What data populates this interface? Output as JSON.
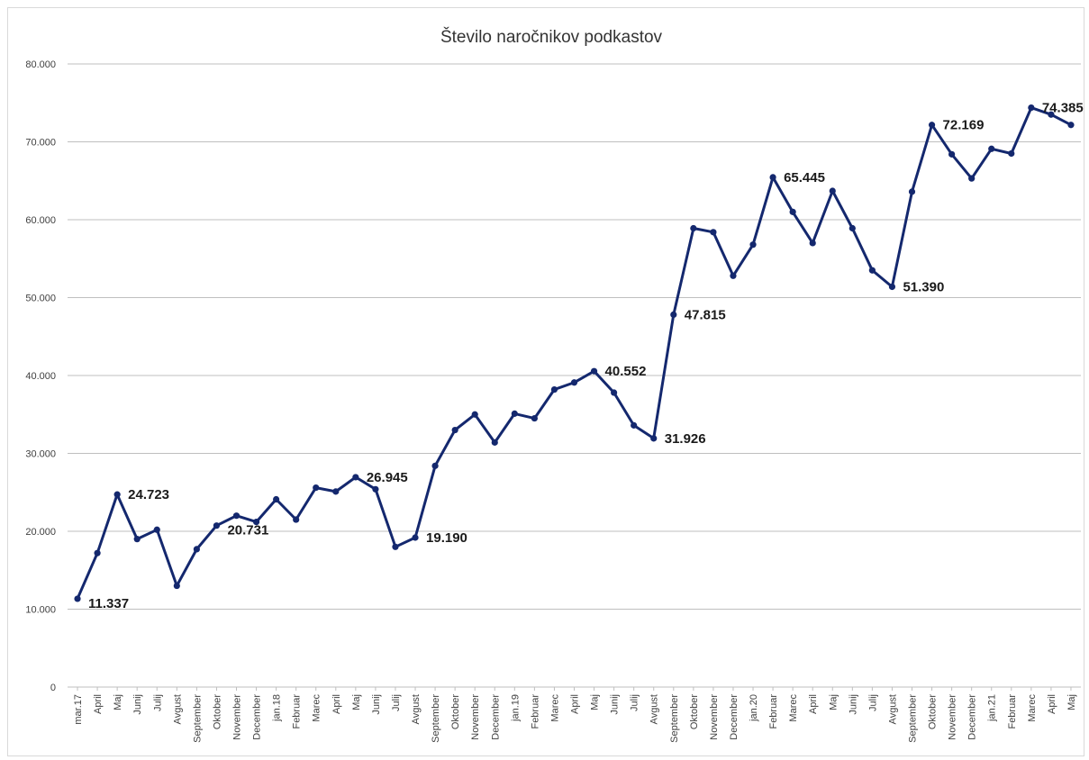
{
  "chart_data": {
    "type": "line",
    "title": "Število naročnikov podkastov",
    "xlabel": "",
    "ylabel": "",
    "ylim": [
      0,
      80000
    ],
    "yticks": [
      0,
      10000,
      20000,
      30000,
      40000,
      50000,
      60000,
      70000,
      80000
    ],
    "ytick_labels": [
      "0",
      "10.000",
      "20.000",
      "30.000",
      "40.000",
      "50.000",
      "60.000",
      "70.000",
      "80.000"
    ],
    "grid": "horizontal",
    "legend": "none",
    "colors": {
      "line": "#14286e",
      "grid": "#bfbfbf",
      "axis": "#bfbfbf"
    },
    "categories": [
      "mar.17",
      "April",
      "Maj",
      "Junij",
      "Julij",
      "Avgust",
      "September",
      "Oktober",
      "November",
      "December",
      "jan.18",
      "Februar",
      "Marec",
      "April",
      "Maj",
      "Junij",
      "Julij",
      "Avgust",
      "September",
      "Oktober",
      "November",
      "December",
      "jan.19",
      "Februar",
      "Marec",
      "April",
      "Maj",
      "Junij",
      "Julij",
      "Avgust",
      "September",
      "Oktober",
      "November",
      "December",
      "jan.20",
      "Februar",
      "Marec",
      "April",
      "Maj",
      "Junij",
      "Julij",
      "Avgust",
      "September",
      "Oktober",
      "November",
      "December",
      "jan.21",
      "Februar",
      "Marec",
      "April",
      "Maj"
    ],
    "values": [
      11337,
      17200,
      24723,
      19000,
      20200,
      13000,
      17700,
      20731,
      22000,
      21200,
      24100,
      21500,
      25600,
      25100,
      26945,
      25400,
      18000,
      19190,
      28400,
      33000,
      35000,
      31400,
      35100,
      34500,
      38200,
      39100,
      40552,
      37800,
      33600,
      31926,
      47815,
      58900,
      58400,
      52800,
      56800,
      65445,
      61000,
      57000,
      63700,
      58900,
      53500,
      51390,
      63600,
      72169,
      68400,
      65300,
      69100,
      68500,
      74385,
      73500,
      72169
    ],
    "data_labels": [
      {
        "index": 0,
        "text": "11.337",
        "pos": "right-below"
      },
      {
        "index": 2,
        "text": "24.723",
        "pos": "right"
      },
      {
        "index": 7,
        "text": "20.731",
        "pos": "right-below"
      },
      {
        "index": 14,
        "text": "26.945",
        "pos": "right"
      },
      {
        "index": 17,
        "text": "19.190",
        "pos": "right"
      },
      {
        "index": 26,
        "text": "40.552",
        "pos": "right"
      },
      {
        "index": 29,
        "text": "31.926",
        "pos": "right"
      },
      {
        "index": 30,
        "text": "47.815",
        "pos": "right"
      },
      {
        "index": 35,
        "text": "65.445",
        "pos": "right"
      },
      {
        "index": 41,
        "text": "51.390",
        "pos": "right"
      },
      {
        "index": 43,
        "text": "72.169",
        "pos": "right"
      },
      {
        "index": 48,
        "text": "74.385",
        "pos": "right"
      }
    ]
  }
}
